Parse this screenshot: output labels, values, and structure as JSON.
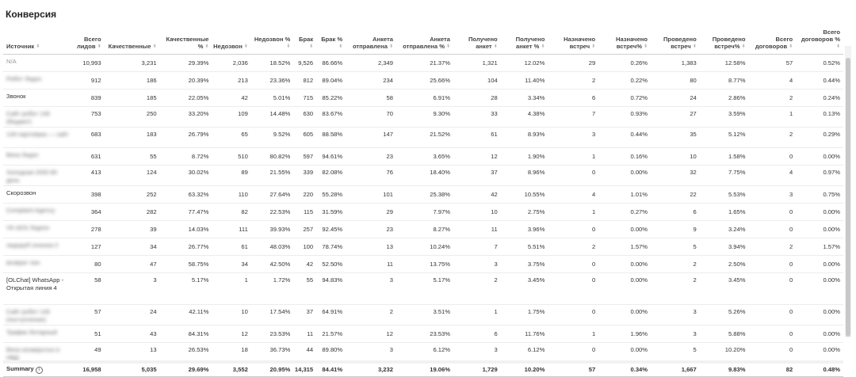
{
  "title": "Конверсия",
  "columns": [
    "Источник",
    "Всего лидов",
    "Качественные",
    "Качественные %",
    "Недозвон",
    "Недозвон %",
    "Брак",
    "Брак %",
    "Анкета отправлена",
    "Анкета отправлена %",
    "Получено анкет",
    "Получено анкет %",
    "Назначено встреч",
    "Назначено встреч%",
    "Проведено встреч",
    "Проведено встреч%",
    "Всего договоров",
    "Всего договоров %"
  ],
  "rows": [
    {
      "source": "N/A",
      "blurred": false,
      "na": true,
      "tall": false,
      "values": [
        "10,993",
        "3,231",
        "29.39%",
        "2,036",
        "18.52%",
        "9,526",
        "86.66%",
        "2,349",
        "21.37%",
        "1,321",
        "12.02%",
        "29",
        "0.26%",
        "1,383",
        "12.58%",
        "57",
        "0.52%"
      ]
    },
    {
      "source": "Робот Лидос",
      "blurred": true,
      "tall": false,
      "values": [
        "912",
        "186",
        "20.39%",
        "213",
        "23.36%",
        "812",
        "89.04%",
        "234",
        "25.66%",
        "104",
        "11.40%",
        "2",
        "0.22%",
        "80",
        "8.77%",
        "4",
        "0.44%"
      ]
    },
    {
      "source": "Звонок",
      "blurred": false,
      "tall": false,
      "values": [
        "839",
        "185",
        "22.05%",
        "42",
        "5.01%",
        "715",
        "85.22%",
        "58",
        "6.91%",
        "28",
        "3.34%",
        "6",
        "0.72%",
        "24",
        "2.86%",
        "2",
        "0.24%"
      ]
    },
    {
      "source": "Сайт робот 149 (бюджет)",
      "blurred": true,
      "tall": true,
      "values": [
        "753",
        "250",
        "33.20%",
        "109",
        "14.48%",
        "630",
        "83.67%",
        "70",
        "9.30%",
        "33",
        "4.38%",
        "7",
        "0.93%",
        "27",
        "3.59%",
        "1",
        "0.13%"
      ]
    },
    {
      "source": "149 партнёрка — сайт",
      "blurred": true,
      "tall": true,
      "values": [
        "683",
        "183",
        "26.79%",
        "65",
        "9.52%",
        "605",
        "88.58%",
        "147",
        "21.52%",
        "61",
        "8.93%",
        "3",
        "0.44%",
        "35",
        "5.12%",
        "2",
        "0.29%"
      ]
    },
    {
      "source": "Веха Лидос",
      "blurred": true,
      "tall": false,
      "values": [
        "631",
        "55",
        "8.72%",
        "510",
        "80.82%",
        "597",
        "94.61%",
        "23",
        "3.65%",
        "12",
        "1.90%",
        "1",
        "0.16%",
        "10",
        "1.58%",
        "0",
        "0.00%"
      ]
    },
    {
      "source": "Холодная 2000 80 день",
      "blurred": true,
      "tall": true,
      "values": [
        "413",
        "124",
        "30.02%",
        "89",
        "21.55%",
        "339",
        "82.08%",
        "76",
        "18.40%",
        "37",
        "8.96%",
        "0",
        "0.00%",
        "32",
        "7.75%",
        "4",
        "0.97%"
      ]
    },
    {
      "source": "Скорозвон",
      "blurred": false,
      "tall": false,
      "values": [
        "398",
        "252",
        "63.32%",
        "110",
        "27.64%",
        "220",
        "55.28%",
        "101",
        "25.38%",
        "42",
        "10.55%",
        "4",
        "1.01%",
        "22",
        "5.53%",
        "3",
        "0.75%"
      ]
    },
    {
      "source": "Complaint Agency",
      "blurred": true,
      "tall": false,
      "values": [
        "364",
        "282",
        "77.47%",
        "82",
        "22.53%",
        "115",
        "31.59%",
        "29",
        "7.97%",
        "10",
        "2.75%",
        "1",
        "0.27%",
        "6",
        "1.65%",
        "0",
        "0.00%"
      ]
    },
    {
      "source": "VK ADS Лидген",
      "blurred": true,
      "tall": false,
      "values": [
        "278",
        "39",
        "14.03%",
        "111",
        "39.93%",
        "257",
        "92.45%",
        "23",
        "8.27%",
        "11",
        "3.96%",
        "0",
        "0.00%",
        "9",
        "3.24%",
        "0",
        "0.00%"
      ]
    },
    {
      "source": "лидоруб сезонка 2",
      "blurred": true,
      "tall": false,
      "values": [
        "127",
        "34",
        "26.77%",
        "61",
        "48.03%",
        "100",
        "78.74%",
        "13",
        "10.24%",
        "7",
        "5.51%",
        "2",
        "1.57%",
        "5",
        "3.94%",
        "2",
        "1.57%"
      ]
    },
    {
      "source": "возврат лин",
      "blurred": true,
      "tall": false,
      "values": [
        "80",
        "47",
        "58.75%",
        "34",
        "42.50%",
        "42",
        "52.50%",
        "11",
        "13.75%",
        "3",
        "3.75%",
        "0",
        "0.00%",
        "2",
        "2.50%",
        "0",
        "0.00%"
      ]
    },
    {
      "source": "[OLChat] WhatsApp - Открытая линия 4",
      "blurred": false,
      "tall": true,
      "taller": true,
      "values": [
        "58",
        "3",
        "5.17%",
        "1",
        "1.72%",
        "55",
        "94.83%",
        "3",
        "5.17%",
        "2",
        "3.45%",
        "0",
        "0.00%",
        "2",
        "3.45%",
        "0",
        "0.00%"
      ]
    },
    {
      "source": "Сайт робот 149 (поступление)",
      "blurred": true,
      "tall": true,
      "values": [
        "57",
        "24",
        "42.11%",
        "10",
        "17.54%",
        "37",
        "64.91%",
        "2",
        "3.51%",
        "1",
        "1.75%",
        "0",
        "0.00%",
        "3",
        "5.26%",
        "0",
        "0.00%"
      ]
    },
    {
      "source": "Трафик Янтарный",
      "blurred": true,
      "tall": false,
      "values": [
        "51",
        "43",
        "84.31%",
        "12",
        "23.53%",
        "11",
        "21.57%",
        "12",
        "23.53%",
        "6",
        "11.76%",
        "1",
        "1.96%",
        "3",
        "5.88%",
        "0",
        "0.00%"
      ]
    },
    {
      "source": "Веха незакрытых в НВД",
      "blurred": true,
      "tall": true,
      "values": [
        "49",
        "13",
        "26.53%",
        "18",
        "36.73%",
        "44",
        "89.80%",
        "3",
        "6.12%",
        "3",
        "6.12%",
        "0",
        "0.00%",
        "5",
        "10.20%",
        "0",
        "0.00%"
      ]
    }
  ],
  "summary": {
    "label": "Summary",
    "info_icon": "i",
    "values": [
      "16,958",
      "5,035",
      "29.69%",
      "3,552",
      "20.95%",
      "14,315",
      "84.41%",
      "3,232",
      "19.06%",
      "1,729",
      "10.20%",
      "57",
      "0.34%",
      "1,667",
      "9.83%",
      "82",
      "0.48%"
    ]
  },
  "sort_glyph": "⬍"
}
